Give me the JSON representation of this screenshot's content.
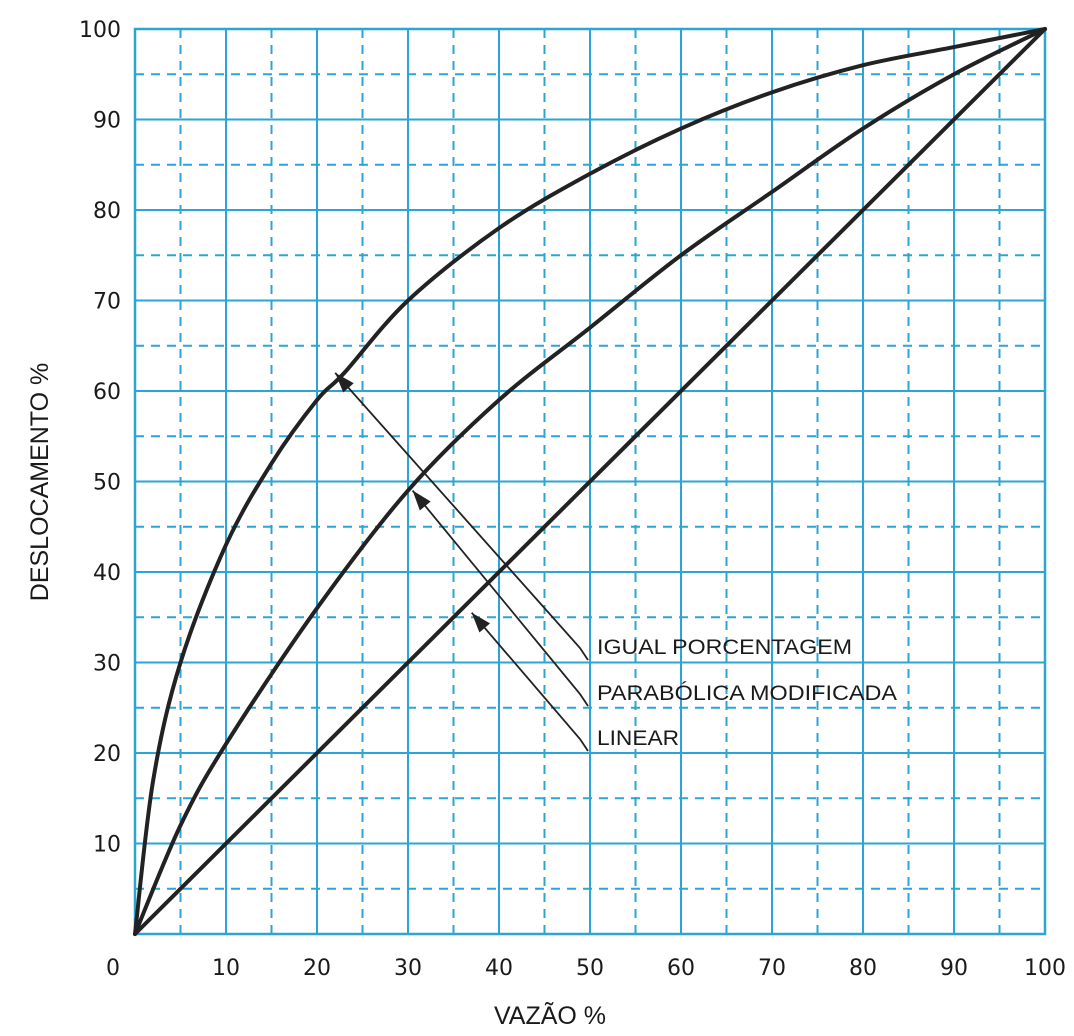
{
  "chart_data": {
    "type": "line",
    "xlabel": "VAZÃO %",
    "ylabel": "DESLOCAMENTO %",
    "xlim": [
      0,
      100
    ],
    "ylim": [
      0,
      100
    ],
    "x_ticks": [
      "0",
      "10",
      "20",
      "30",
      "40",
      "50",
      "60",
      "70",
      "80",
      "90",
      "100"
    ],
    "y_ticks": [
      "10",
      "20",
      "30",
      "40",
      "50",
      "60",
      "70",
      "80",
      "90",
      "100"
    ],
    "grid": true,
    "series": [
      {
        "name": "IGUAL PORCENTAGEM",
        "x": [
          0,
          2,
          5,
          10,
          15,
          20,
          23,
          30,
          40,
          50,
          60,
          70,
          80,
          90,
          100
        ],
        "y": [
          0,
          17,
          30,
          43,
          52,
          59,
          62,
          70,
          78,
          84,
          89,
          93,
          96,
          98,
          100
        ]
      },
      {
        "name": "PARABÓLICA MODIFICADA",
        "x": [
          0,
          5,
          10,
          20,
          30,
          40,
          50,
          60,
          70,
          80,
          90,
          100
        ],
        "y": [
          0,
          12,
          21,
          36,
          49,
          59,
          67,
          75,
          82,
          89,
          95,
          100
        ]
      },
      {
        "name": "LINEAR",
        "x": [
          0,
          100
        ],
        "y": [
          0,
          100
        ]
      }
    ],
    "annotations": [
      {
        "label": "IGUAL PORCENTAGEM",
        "arrow_to": [
          22,
          62
        ]
      },
      {
        "label": "PARABÓLICA MODIFICADA",
        "arrow_to": [
          30.5,
          49
        ]
      },
      {
        "label": "LINEAR",
        "arrow_to": [
          37,
          35.5
        ]
      }
    ],
    "colors": {
      "grid": "#2aa5d6",
      "curves": "#222222"
    }
  }
}
